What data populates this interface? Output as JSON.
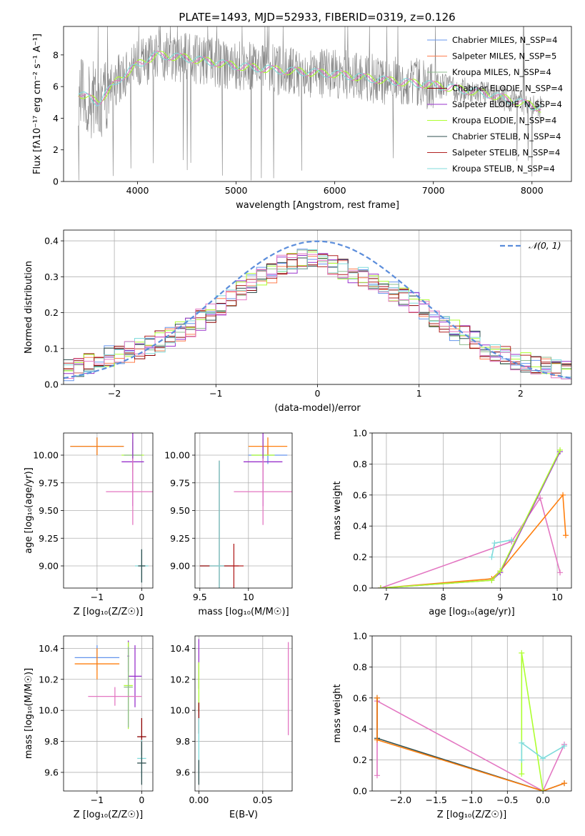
{
  "figure": {
    "title": "PLATE=1493, MJD=52933, FIBERID=0319, z=0.126"
  },
  "colors": {
    "spectrum_data": "#808080",
    "chabrier_miles": "#6495ED",
    "salpeter_miles": "#FF7F50",
    "kroupa_miles": "#8FBC8F",
    "chabrier_elodie": "#8B0000",
    "salpeter_elodie": "#9932CC",
    "kroupa_elodie": "#ADFF2F",
    "chabrier_stelib": "#2F4F4F",
    "salpeter_stelib": "#B22222",
    "kroupa_stelib": "#7FDBDB",
    "pink": "#E377C2",
    "orange": "#FF7F0E",
    "gaussian": "#5B8DDB",
    "grid": "#B0B0B0"
  },
  "chart_data": [
    {
      "id": "spectrum",
      "type": "line",
      "xlabel": "wavelength [Angstrom, rest frame]",
      "ylabel": "Flux [fλ10⁻¹⁷ erg cm⁻² s⁻¹ A⁻¹]",
      "xlim": [
        3250,
        8400
      ],
      "ylim": [
        0,
        9.8
      ],
      "xticks": [
        4000,
        5000,
        6000,
        7000,
        8000
      ],
      "yticks": [
        0,
        2,
        4,
        6,
        8
      ],
      "grid": false,
      "legend_position": "upper right",
      "legend": [
        "Chabrier MILES, N_SSP=4",
        "Salpeter MILES, N_SSP=5",
        "Kroupa MILES, N_SSP=4",
        "Chabrier ELODIE, N_SSP=4",
        "Salpeter ELODIE, N_SSP=4",
        "Kroupa ELODIE, N_SSP=4",
        "Chabrier STELIB, N_SSP=4",
        "Salpeter STELIB, N_SSP=4",
        "Kroupa STELIB, N_SSP=4"
      ],
      "continuum": {
        "x": [
          3400,
          3600,
          3800,
          4000,
          4200,
          4500,
          5000,
          5500,
          6000,
          6500,
          7000,
          7500,
          8000,
          8100
        ],
        "y": [
          5.6,
          5.0,
          6.4,
          7.4,
          8.0,
          7.8,
          7.3,
          7.0,
          6.8,
          6.4,
          6.1,
          5.6,
          4.8,
          4.6
        ]
      },
      "data_range": [
        3400,
        8100
      ]
    },
    {
      "id": "residuals",
      "type": "line",
      "xlabel": "(data-model)/error",
      "ylabel": "Normed distribution",
      "xlim": [
        -2.5,
        2.5
      ],
      "ylim": [
        0,
        0.43
      ],
      "xticks": [
        -2,
        -1,
        0,
        1,
        2
      ],
      "yticks": [
        0.0,
        0.1,
        0.2,
        0.3,
        0.4
      ],
      "grid": true,
      "legend_position": "upper right",
      "legend": [
        "𝒩(0, 1)"
      ],
      "bins": 50,
      "histogram_base": [
        0.04,
        0.05,
        0.06,
        0.07,
        0.08,
        0.08,
        0.09,
        0.1,
        0.11,
        0.12,
        0.13,
        0.15,
        0.16,
        0.18,
        0.2,
        0.22,
        0.24,
        0.26,
        0.28,
        0.3,
        0.31,
        0.33,
        0.34,
        0.35,
        0.35,
        0.34,
        0.33,
        0.32,
        0.31,
        0.3,
        0.29,
        0.27,
        0.26,
        0.24,
        0.23,
        0.21,
        0.19,
        0.17,
        0.15,
        0.14,
        0.12,
        0.1,
        0.09,
        0.08,
        0.07,
        0.06,
        0.05,
        0.05,
        0.04,
        0.04
      ]
    },
    {
      "id": "age_vs_Z",
      "type": "scatter",
      "xlabel": "Z [log₁₀(Z/Z☉)]",
      "ylabel": "age  [log₁₀(age/yr)]",
      "xlim": [
        -1.75,
        0.25
      ],
      "ylim": [
        8.8,
        10.2
      ],
      "xticks": [
        -1,
        0
      ],
      "yticks": [
        9.0,
        9.25,
        9.5,
        9.75,
        10.0
      ],
      "ytick_labels": [
        "9.00",
        "9.25",
        "9.50",
        "9.75",
        "10.00"
      ],
      "grid": true,
      "points": [
        {
          "x": -1.0,
          "y": 10.08,
          "xerr": 0.6,
          "yerr": 0.08,
          "color": "chabrier_miles"
        },
        {
          "x": -1.0,
          "y": 10.08,
          "xerr": 0.6,
          "yerr": 0.08,
          "color": "orange"
        },
        {
          "x": -0.2,
          "y": 10.0,
          "xerr": 0.25,
          "yerr": 0.15,
          "color": "kroupa_elodie"
        },
        {
          "x": -0.2,
          "y": 10.0,
          "xerr": 0.2,
          "yerr": 0.12,
          "color": "kroupa_miles"
        },
        {
          "x": -0.2,
          "y": 9.94,
          "xerr": 0.25,
          "yerr": 0.4,
          "color": "salpeter_elodie"
        },
        {
          "x": -0.2,
          "y": 9.67,
          "xerr": 0.6,
          "yerr": 0.3,
          "color": "pink"
        },
        {
          "x": 0.0,
          "y": 9.0,
          "xerr": 0.15,
          "yerr": 0.15,
          "color": "kroupa_stelib"
        },
        {
          "x": 0.0,
          "y": 9.0,
          "xerr": 0.08,
          "yerr": 0.15,
          "color": "chabrier_stelib"
        }
      ]
    },
    {
      "id": "age_vs_mass",
      "type": "scatter",
      "xlabel": "mass [log₁₀(M/M☉)]",
      "ylabel": "",
      "xlim": [
        9.45,
        10.45
      ],
      "ylim": [
        8.8,
        10.2
      ],
      "xticks": [
        9.5,
        10.0
      ],
      "yticks": [
        9.0,
        9.25,
        9.5,
        9.75,
        10.0
      ],
      "ytick_labels": [
        "9.00",
        "9.25",
        "9.50",
        "9.75",
        "10.00"
      ],
      "grid": true,
      "points": [
        {
          "x": 10.2,
          "y": 10.0,
          "xerr": 0.2,
          "yerr": 0.08,
          "color": "chabrier_miles"
        },
        {
          "x": 10.2,
          "y": 10.08,
          "xerr": 0.2,
          "yerr": 0.08,
          "color": "orange"
        },
        {
          "x": 10.15,
          "y": 10.0,
          "xerr": 0.12,
          "yerr": 0.15,
          "color": "kroupa_elodie"
        },
        {
          "x": 10.15,
          "y": 9.94,
          "xerr": 0.2,
          "yerr": 0.4,
          "color": "salpeter_elodie"
        },
        {
          "x": 10.15,
          "y": 9.67,
          "xerr": 0.3,
          "yerr": 0.3,
          "color": "pink"
        },
        {
          "x": 9.7,
          "y": 9.0,
          "xerr": 0.2,
          "yerr": 0.95,
          "color": "chabrier_elodie"
        },
        {
          "x": 9.7,
          "y": 9.0,
          "xerr": 0.1,
          "yerr": 0.95,
          "color": "kroupa_stelib"
        },
        {
          "x": 9.85,
          "y": 9.0,
          "xerr": 0.1,
          "yerr": 0.2,
          "color": "salpeter_stelib"
        }
      ]
    },
    {
      "id": "massweight_vs_age",
      "type": "line",
      "xlabel": "age  [log₁₀(age/yr)]",
      "ylabel": "mass weight",
      "xlim": [
        6.75,
        10.25
      ],
      "ylim": [
        0,
        1.0
      ],
      "xticks": [
        7,
        8,
        9,
        10
      ],
      "yticks": [
        0.0,
        0.2,
        0.4,
        0.6,
        0.8,
        1.0
      ],
      "grid": true,
      "series": [
        {
          "color": "pink",
          "x": [
            6.9,
            9.2,
            9.7,
            10.05
          ],
          "y": [
            0.0,
            0.3,
            0.58,
            0.1
          ]
        },
        {
          "color": "orange",
          "x": [
            6.9,
            8.85,
            9.0,
            10.1,
            10.15
          ],
          "y": [
            0.0,
            0.06,
            0.11,
            0.6,
            0.34
          ]
        },
        {
          "color": "salpeter_elodie",
          "x": [
            6.9,
            8.85,
            9.0,
            10.05
          ],
          "y": [
            0.0,
            0.05,
            0.1,
            0.88
          ]
        },
        {
          "color": "kroupa_elodie",
          "x": [
            6.9,
            8.85,
            9.0,
            10.05
          ],
          "y": [
            0.0,
            0.05,
            0.11,
            0.89
          ]
        },
        {
          "color": "kroupa_stelib",
          "x": [
            8.85,
            8.9,
            9.2
          ],
          "y": [
            0.2,
            0.29,
            0.31
          ]
        }
      ]
    },
    {
      "id": "mass_vs_Z",
      "type": "scatter",
      "xlabel": "Z [log₁₀(Z/Z☉)]",
      "ylabel": "mass [log₁₀(M/M☉)]",
      "xlim": [
        -1.75,
        0.25
      ],
      "ylim": [
        9.48,
        10.48
      ],
      "xticks": [
        -1,
        0
      ],
      "yticks": [
        9.6,
        9.8,
        10.0,
        10.2,
        10.4
      ],
      "grid": true,
      "points": [
        {
          "x": -1.0,
          "y": 10.34,
          "xerr": 0.5,
          "yerr": 0.08,
          "color": "chabrier_miles"
        },
        {
          "x": -1.0,
          "y": 10.3,
          "xerr": 0.5,
          "yerr": 0.1,
          "color": "orange"
        },
        {
          "x": -0.3,
          "y": 10.35,
          "xerr": 0.02,
          "yerr": 0.1,
          "color": "salpeter_elodie"
        },
        {
          "x": -0.15,
          "y": 10.22,
          "xerr": 0.15,
          "yerr": 0.2,
          "color": "salpeter_elodie"
        },
        {
          "x": -0.3,
          "y": 10.16,
          "xerr": 0.1,
          "yerr": 0.28,
          "color": "kroupa_elodie"
        },
        {
          "x": -0.3,
          "y": 10.15,
          "xerr": 0.1,
          "yerr": 0.26,
          "color": "kroupa_miles"
        },
        {
          "x": -0.6,
          "y": 10.09,
          "xerr": 0.6,
          "yerr": 0.06,
          "color": "pink"
        },
        {
          "x": 0.0,
          "y": 9.83,
          "xerr": 0.1,
          "yerr": 0.12,
          "color": "chabrier_elodie"
        },
        {
          "x": 0.0,
          "y": 9.69,
          "xerr": 0.1,
          "yerr": 0.12,
          "color": "kroupa_stelib"
        },
        {
          "x": 0.0,
          "y": 9.66,
          "xerr": 0.1,
          "yerr": 0.14,
          "color": "chabrier_stelib"
        }
      ]
    },
    {
      "id": "mass_vs_ebv",
      "type": "scatter",
      "xlabel": "E(B-V)",
      "ylabel": "",
      "xlim": [
        -0.003,
        0.073
      ],
      "ylim": [
        9.48,
        10.48
      ],
      "xticks": [
        0.0,
        0.05
      ],
      "xtick_labels": [
        "0.00",
        "0.05"
      ],
      "yticks": [
        9.6,
        9.8,
        10.0,
        10.2,
        10.4
      ],
      "grid": true,
      "points": [
        {
          "x": 0.0,
          "y": 10.3,
          "xerr": 0,
          "yerr": 0.16,
          "color": "salpeter_elodie"
        },
        {
          "x": 0.0,
          "y": 10.15,
          "xerr": 0,
          "yerr": 0.16,
          "color": "kroupa_elodie"
        },
        {
          "x": 0.0,
          "y": 9.95,
          "xerr": 0,
          "yerr": 0.1,
          "color": "chabrier_elodie"
        },
        {
          "x": 0.0,
          "y": 9.75,
          "xerr": 0,
          "yerr": 0.2,
          "color": "kroupa_stelib"
        },
        {
          "x": 0.0,
          "y": 9.6,
          "xerr": 0,
          "yerr": 0.08,
          "color": "chabrier_stelib"
        },
        {
          "x": 0.07,
          "y": 10.14,
          "xerr": 0,
          "yerr": 0.3,
          "color": "pink"
        }
      ]
    },
    {
      "id": "massweight_vs_Z",
      "type": "line",
      "xlabel": "Z [log₁₀(Z/Z☉)]",
      "ylabel": "mass weight",
      "xlim": [
        -2.4,
        0.4
      ],
      "ylim": [
        0,
        1.0
      ],
      "xticks": [
        -2.0,
        -1.5,
        -1.0,
        -0.5,
        0.0
      ],
      "xtick_labels": [
        "−2.0",
        "−1.5",
        "−1.0",
        "−0.5",
        "0.0"
      ],
      "yticks": [
        0.0,
        0.2,
        0.4,
        0.6,
        0.8,
        1.0
      ],
      "grid": true,
      "series": [
        {
          "color": "pink",
          "x": [
            -2.33,
            -2.33,
            0.0,
            0.3
          ],
          "y": [
            0.1,
            0.58,
            0.0,
            0.3
          ]
        },
        {
          "color": "chabrier_stelib",
          "x": [
            -2.33,
            -2.33,
            0.0,
            0.3
          ],
          "y": [
            0.6,
            0.34,
            0.0,
            0.05
          ]
        },
        {
          "color": "orange",
          "x": [
            -2.33,
            -2.33,
            0.0,
            0.3
          ],
          "y": [
            0.6,
            0.33,
            0.0,
            0.05
          ]
        },
        {
          "color": "kroupa_elodie",
          "x": [
            -0.3,
            -0.3,
            0.0
          ],
          "y": [
            0.11,
            0.89,
            0.0
          ]
        },
        {
          "color": "kroupa_stelib",
          "x": [
            -0.3,
            -0.3,
            0.0,
            0.3
          ],
          "y": [
            0.2,
            0.31,
            0.21,
            0.29
          ]
        }
      ]
    }
  ]
}
